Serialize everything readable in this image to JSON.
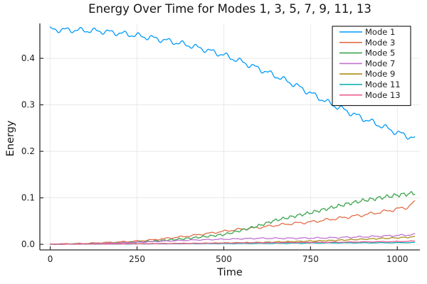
{
  "chart_data": {
    "type": "line",
    "title": "Energy Over Time for Modes 1, 3, 5, 7, 9, 11, 13",
    "xlabel": "Time",
    "ylabel": "Energy",
    "xlim": [
      -30,
      1065
    ],
    "ylim": [
      -0.012,
      0.475
    ],
    "x_tick_values": [
      0,
      250,
      500,
      750,
      1000
    ],
    "x_tick_labels": [
      "0",
      "250",
      "500",
      "750",
      "1000"
    ],
    "y_tick_values": [
      0.0,
      0.1,
      0.2,
      0.3,
      0.4
    ],
    "y_tick_labels": [
      "0.0",
      "0.1",
      "0.2",
      "0.3",
      "0.4"
    ],
    "grid": true,
    "legend_position": "top-right",
    "background_color": "#ffffff",
    "grid_color": "#e8e8e8",
    "spine_color": "#2a2a2a",
    "text_color": "#1f1f1f",
    "legend_border_color": "#111111",
    "t_start": 0,
    "t_end": 1050,
    "series": [
      {
        "name": "Mode 1",
        "color": "#009AFA",
        "backbone": [
          [
            0,
            0.462
          ],
          [
            100,
            0.46
          ],
          [
            150,
            0.458
          ],
          [
            200,
            0.454
          ],
          [
            250,
            0.449
          ],
          [
            300,
            0.443
          ],
          [
            350,
            0.436
          ],
          [
            400,
            0.428
          ],
          [
            450,
            0.418
          ],
          [
            500,
            0.407
          ],
          [
            550,
            0.393
          ],
          [
            600,
            0.378
          ],
          [
            650,
            0.362
          ],
          [
            700,
            0.345
          ],
          [
            750,
            0.325
          ],
          [
            800,
            0.305
          ],
          [
            850,
            0.288
          ],
          [
            900,
            0.271
          ],
          [
            950,
            0.256
          ],
          [
            1000,
            0.24
          ],
          [
            1050,
            0.228
          ]
        ],
        "ripple": {
          "amp0": 0.0045,
          "amp1": 0.0048,
          "period": 42,
          "phase": 1.2
        }
      },
      {
        "name": "Mode 3",
        "color": "#E26E47",
        "backbone": [
          [
            0,
            0.0005
          ],
          [
            100,
            0.002
          ],
          [
            200,
            0.005
          ],
          [
            250,
            0.007
          ],
          [
            300,
            0.01
          ],
          [
            350,
            0.014
          ],
          [
            400,
            0.018
          ],
          [
            450,
            0.023
          ],
          [
            500,
            0.028
          ],
          [
            550,
            0.033
          ],
          [
            600,
            0.036
          ],
          [
            650,
            0.041
          ],
          [
            700,
            0.045
          ],
          [
            750,
            0.048
          ],
          [
            800,
            0.053
          ],
          [
            850,
            0.058
          ],
          [
            900,
            0.063
          ],
          [
            950,
            0.069
          ],
          [
            1000,
            0.076
          ],
          [
            1030,
            0.08
          ],
          [
            1045,
            0.089
          ],
          [
            1050,
            0.09
          ]
        ],
        "ripple": {
          "amp0": 0.0004,
          "amp1": 0.0028,
          "period": 42,
          "phase": 2.0
        }
      },
      {
        "name": "Mode 5",
        "color": "#3DA44E",
        "backbone": [
          [
            0,
            0.0003
          ],
          [
            100,
            0.001
          ],
          [
            200,
            0.003
          ],
          [
            300,
            0.007
          ],
          [
            400,
            0.013
          ],
          [
            450,
            0.017
          ],
          [
            500,
            0.021
          ],
          [
            550,
            0.03
          ],
          [
            600,
            0.04
          ],
          [
            650,
            0.052
          ],
          [
            700,
            0.06
          ],
          [
            750,
            0.068
          ],
          [
            800,
            0.077
          ],
          [
            850,
            0.086
          ],
          [
            900,
            0.094
          ],
          [
            950,
            0.1
          ],
          [
            1000,
            0.106
          ],
          [
            1050,
            0.11
          ]
        ],
        "ripple": {
          "amp0": 0.0004,
          "amp1": 0.0035,
          "period": 23,
          "phase": 0.6
        }
      },
      {
        "name": "Mode 7",
        "color": "#C271D2",
        "backbone": [
          [
            0,
            0.0002
          ],
          [
            100,
            0.001
          ],
          [
            200,
            0.003
          ],
          [
            300,
            0.006
          ],
          [
            400,
            0.009
          ],
          [
            500,
            0.011
          ],
          [
            600,
            0.013
          ],
          [
            700,
            0.013
          ],
          [
            800,
            0.014
          ],
          [
            900,
            0.016
          ],
          [
            1000,
            0.019
          ],
          [
            1050,
            0.021
          ]
        ],
        "ripple": {
          "amp0": 0.0003,
          "amp1": 0.0014,
          "period": 40,
          "phase": 0.0
        }
      },
      {
        "name": "Mode 9",
        "color": "#AC8E18",
        "backbone": [
          [
            0,
            0.0002
          ],
          [
            200,
            0.001
          ],
          [
            400,
            0.002
          ],
          [
            600,
            0.004
          ],
          [
            700,
            0.006
          ],
          [
            800,
            0.008
          ],
          [
            900,
            0.011
          ],
          [
            1000,
            0.014
          ],
          [
            1050,
            0.016
          ]
        ],
        "ripple": {
          "amp0": 0.0002,
          "amp1": 0.001,
          "period": 30,
          "phase": 2.4
        }
      },
      {
        "name": "Mode 11",
        "color": "#00AAAE",
        "backbone": [
          [
            0,
            0.0002
          ],
          [
            200,
            0.0008
          ],
          [
            400,
            0.0015
          ],
          [
            600,
            0.002
          ],
          [
            800,
            0.003
          ],
          [
            1000,
            0.0035
          ],
          [
            1050,
            0.004
          ]
        ],
        "ripple": {
          "amp0": 0.0001,
          "amp1": 0.0004,
          "period": 50,
          "phase": 1.2
        }
      },
      {
        "name": "Mode 13",
        "color": "#ED5E93",
        "backbone": [
          [
            0,
            0.0003
          ],
          [
            200,
            0.001
          ],
          [
            400,
            0.002
          ],
          [
            600,
            0.0035
          ],
          [
            800,
            0.0045
          ],
          [
            1000,
            0.006
          ],
          [
            1050,
            0.007
          ]
        ],
        "ripple": {
          "amp0": 0.0001,
          "amp1": 0.0005,
          "period": 45,
          "phase": 0.7
        }
      }
    ]
  }
}
